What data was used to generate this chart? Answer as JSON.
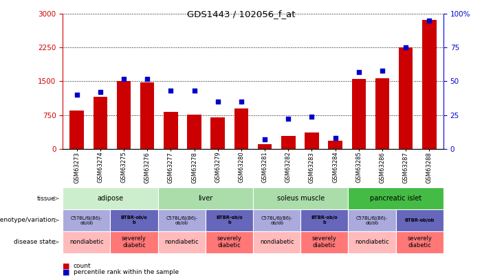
{
  "title": "GDS1443 / 102056_f_at",
  "samples": [
    "GSM63273",
    "GSM63274",
    "GSM63275",
    "GSM63276",
    "GSM63277",
    "GSM63278",
    "GSM63279",
    "GSM63280",
    "GSM63281",
    "GSM63282",
    "GSM63283",
    "GSM63284",
    "GSM63285",
    "GSM63286",
    "GSM63287",
    "GSM63288"
  ],
  "counts": [
    850,
    1150,
    1500,
    1480,
    820,
    760,
    700,
    900,
    100,
    280,
    360,
    180,
    1560,
    1570,
    2250,
    2870
  ],
  "percentiles": [
    40,
    42,
    52,
    52,
    43,
    43,
    35,
    35,
    7,
    22,
    24,
    8,
    57,
    58,
    75,
    95
  ],
  "ylim_left": [
    0,
    3000
  ],
  "ylim_right": [
    0,
    100
  ],
  "yticks_left": [
    0,
    750,
    1500,
    2250,
    3000
  ],
  "yticks_right": [
    0,
    25,
    50,
    75,
    100
  ],
  "bar_color": "#cc0000",
  "dot_color": "#0000cc",
  "tissue_groups": [
    {
      "label": "adipose",
      "start": 0,
      "end": 3,
      "color": "#cceecc"
    },
    {
      "label": "liver",
      "start": 4,
      "end": 7,
      "color": "#aaddaa"
    },
    {
      "label": "soleus muscle",
      "start": 8,
      "end": 11,
      "color": "#aaddaa"
    },
    {
      "label": "pancreatic islet",
      "start": 12,
      "end": 15,
      "color": "#44bb44"
    }
  ],
  "genotype_groups": [
    {
      "label": "C57BL/6J(B6)-\nob/ob",
      "start": 0,
      "end": 1,
      "color": "#aaaadd",
      "bold": false
    },
    {
      "label": "BTBR-ob/o\nb",
      "start": 2,
      "end": 3,
      "color": "#6666bb",
      "bold": true
    },
    {
      "label": "C57BL/6J(B6)-\nob/ob",
      "start": 4,
      "end": 5,
      "color": "#aaaadd",
      "bold": false
    },
    {
      "label": "BTBR-ob/o\nb",
      "start": 6,
      "end": 7,
      "color": "#6666bb",
      "bold": true
    },
    {
      "label": "C57BL/6J(B6)-\nob/ob",
      "start": 8,
      "end": 9,
      "color": "#aaaadd",
      "bold": false
    },
    {
      "label": "BTBR-ob/o\nb",
      "start": 10,
      "end": 11,
      "color": "#6666bb",
      "bold": true
    },
    {
      "label": "C57BL/6J(B6)-\nob/ob",
      "start": 12,
      "end": 13,
      "color": "#aaaadd",
      "bold": false
    },
    {
      "label": "BTBR-ob/ob",
      "start": 14,
      "end": 15,
      "color": "#6666bb",
      "bold": true
    }
  ],
  "disease_groups": [
    {
      "label": "nondiabetic",
      "start": 0,
      "end": 1,
      "color": "#ffbbbb"
    },
    {
      "label": "severely\ndiabetic",
      "start": 2,
      "end": 3,
      "color": "#ff7777"
    },
    {
      "label": "nondiabetic",
      "start": 4,
      "end": 5,
      "color": "#ffbbbb"
    },
    {
      "label": "severely\ndiabetic",
      "start": 6,
      "end": 7,
      "color": "#ff7777"
    },
    {
      "label": "nondiabetic",
      "start": 8,
      "end": 9,
      "color": "#ffbbbb"
    },
    {
      "label": "severely\ndiabetic",
      "start": 10,
      "end": 11,
      "color": "#ff7777"
    },
    {
      "label": "nondiabetic",
      "start": 12,
      "end": 13,
      "color": "#ffbbbb"
    },
    {
      "label": "severely\ndiabetic",
      "start": 14,
      "end": 15,
      "color": "#ff7777"
    }
  ],
  "row_labels": [
    "tissue",
    "genotype/variation",
    "disease state"
  ],
  "legend_count_label": "count",
  "legend_pct_label": "percentile rank within the sample"
}
